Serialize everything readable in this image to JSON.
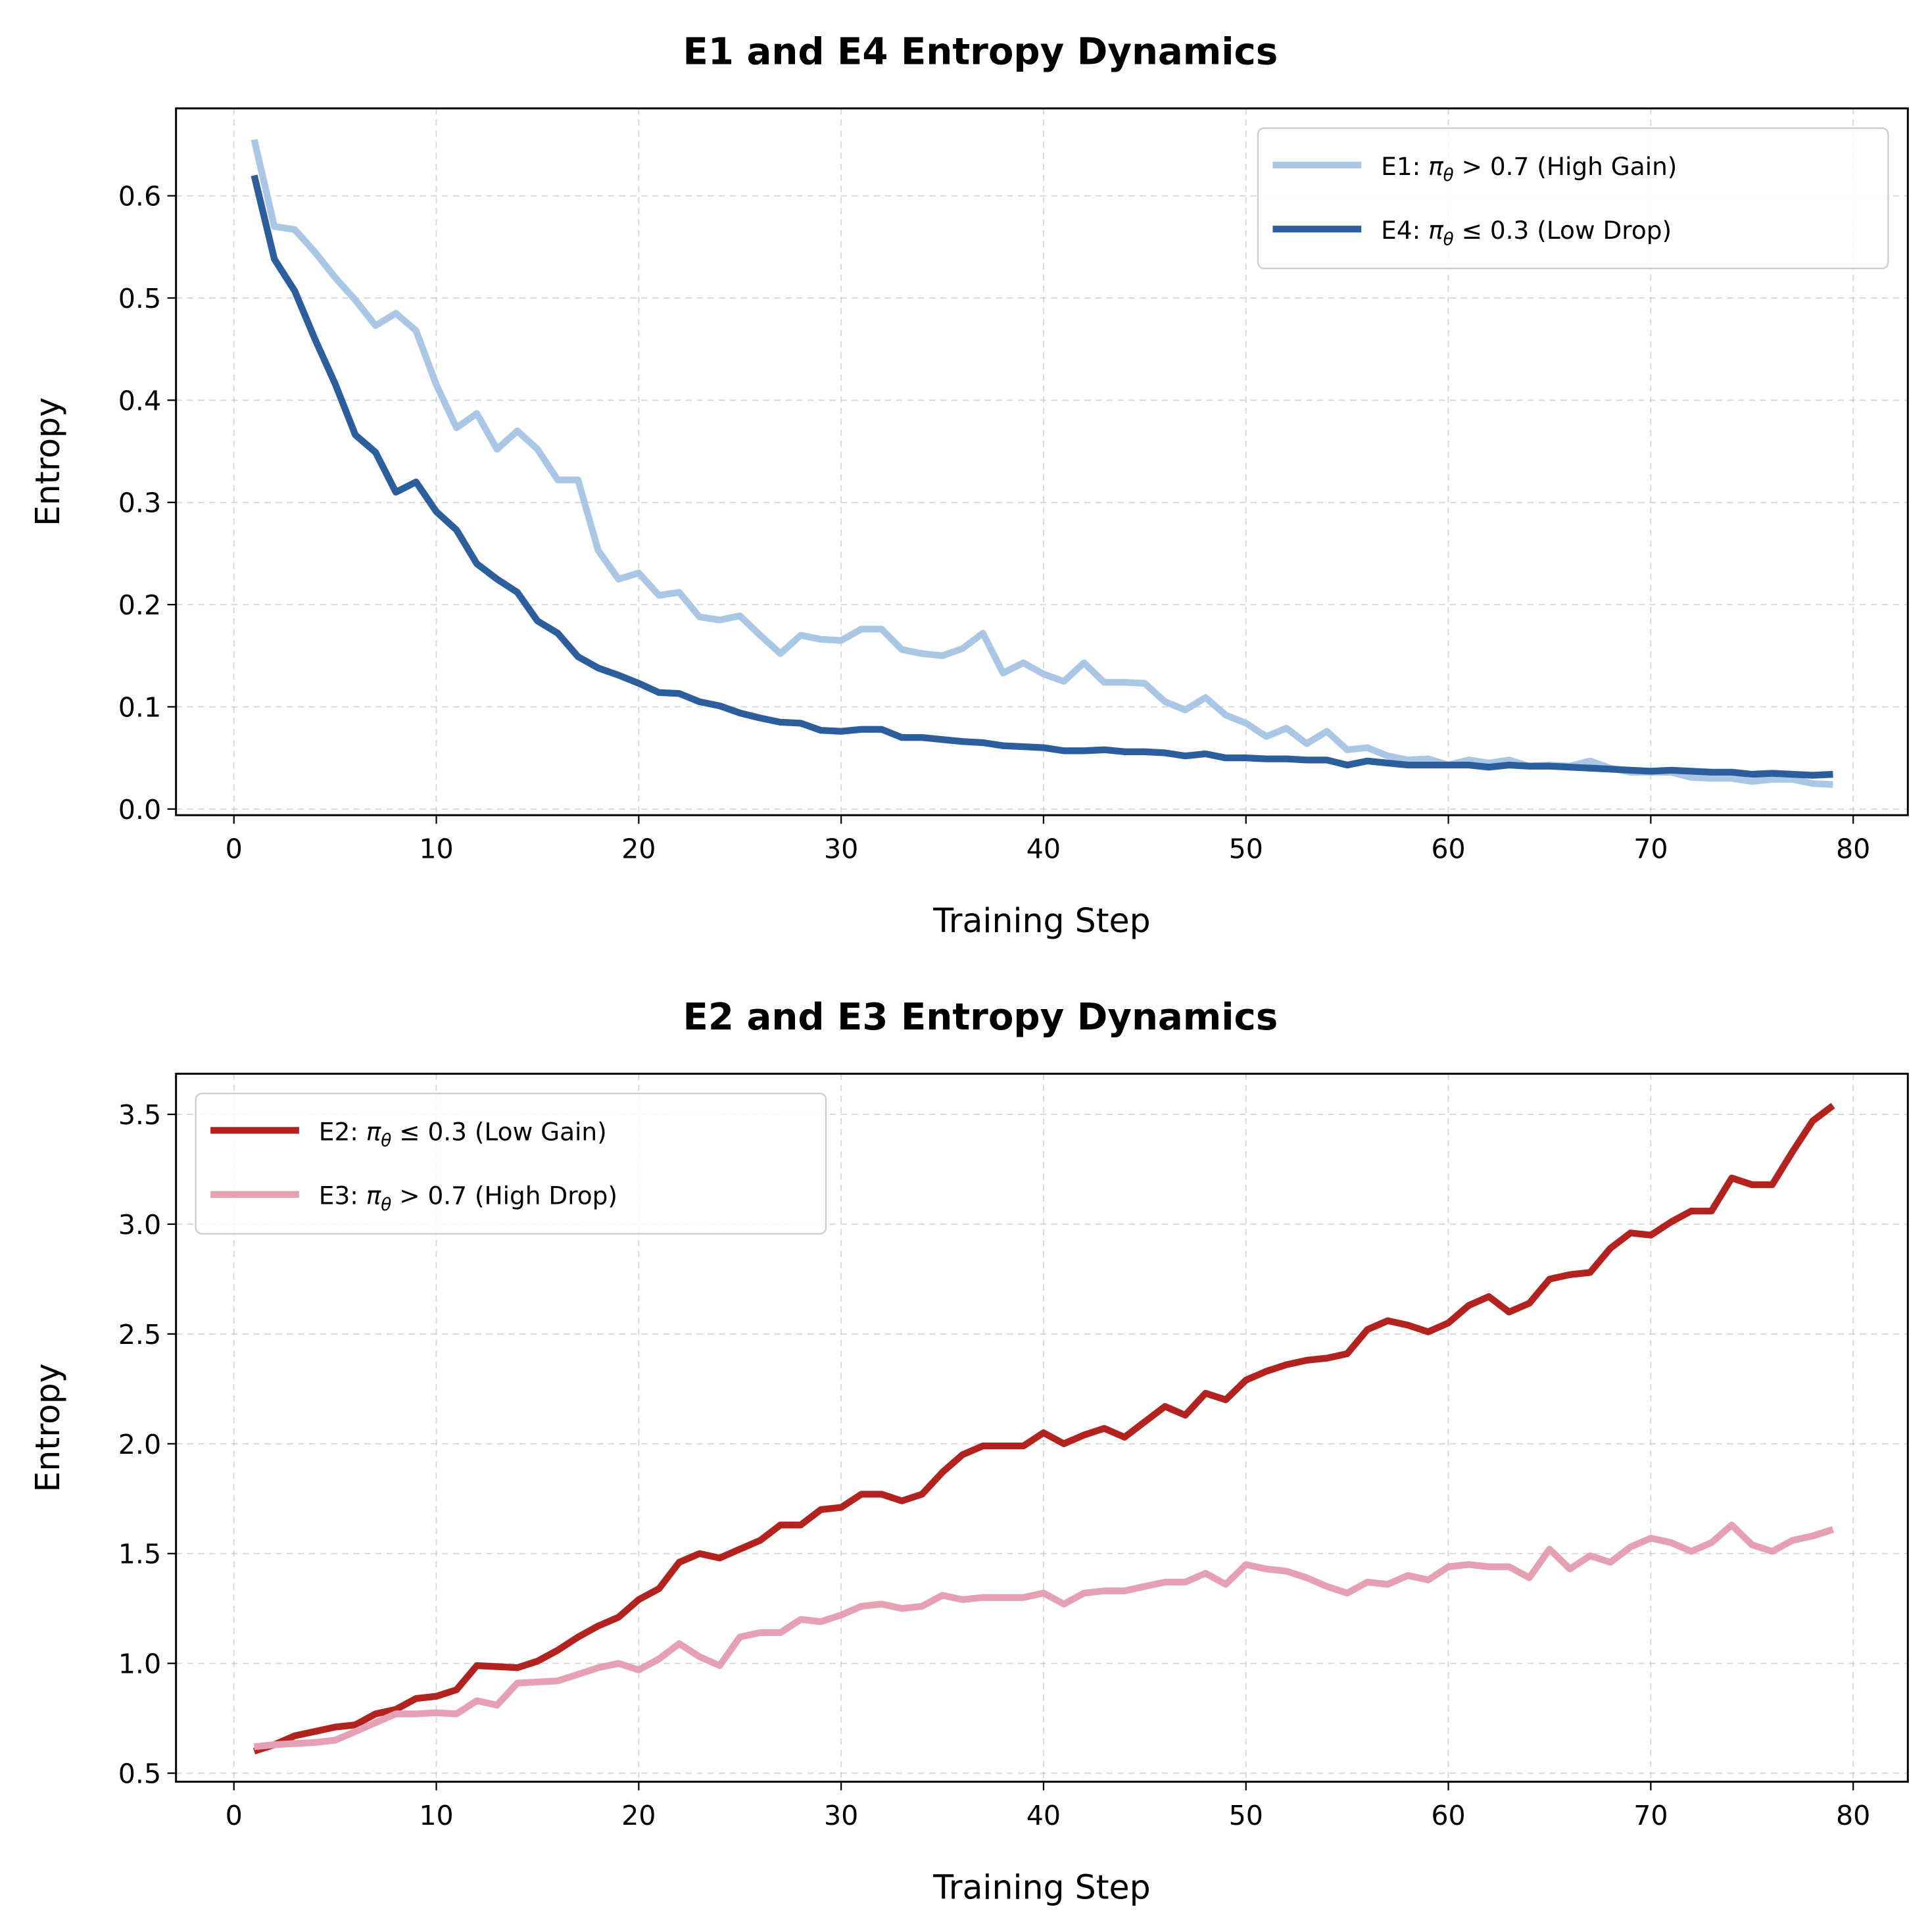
{
  "chart_data": [
    {
      "type": "line",
      "title": "E1 and E4 Entropy Dynamics",
      "xlabel": "Training Step",
      "ylabel": "Entropy",
      "xlim": [
        -2.86,
        82.7
      ],
      "ylim": [
        -0.006,
        0.6855
      ],
      "xticks": [
        "0",
        "10",
        "20",
        "30",
        "40",
        "50",
        "60",
        "70",
        "80"
      ],
      "yticks": [
        "0.0",
        "0.1",
        "0.2",
        "0.3",
        "0.4",
        "0.5",
        "0.6"
      ],
      "grid": true,
      "legend_position": "top-right",
      "series": [
        {
          "name_parts": {
            "prefix": "E1: ",
            "sym": "π",
            "sub": "θ",
            "rest": " > 0.7 (High Gain)"
          },
          "color": "#aac8e6",
          "values": [
            0.655,
            0.57,
            0.567,
            0.545,
            0.52,
            0.498,
            0.473,
            0.485,
            0.468,
            0.415,
            0.373,
            0.387,
            0.352,
            0.37,
            0.352,
            0.322,
            0.322,
            0.253,
            0.225,
            0.231,
            0.209,
            0.212,
            0.188,
            0.185,
            0.189,
            0.17,
            0.152,
            0.17,
            0.166,
            0.165,
            0.176,
            0.176,
            0.156,
            0.152,
            0.15,
            0.157,
            0.172,
            0.133,
            0.143,
            0.132,
            0.125,
            0.143,
            0.124,
            0.124,
            0.123,
            0.105,
            0.097,
            0.109,
            0.092,
            0.084,
            0.071,
            0.079,
            0.064,
            0.076,
            0.058,
            0.06,
            0.052,
            0.048,
            0.049,
            0.043,
            0.048,
            0.045,
            0.048,
            0.042,
            0.043,
            0.042,
            0.047,
            0.04,
            0.036,
            0.036,
            0.036,
            0.031,
            0.03,
            0.03,
            0.027,
            0.029,
            0.029,
            0.025,
            0.024
          ]
        },
        {
          "name_parts": {
            "prefix": "E4: ",
            "sym": "π",
            "sub": "θ",
            "rest": " ≤ 0.3 (Low Drop)"
          },
          "color": "#2c5e9e",
          "values": [
            0.62,
            0.538,
            0.507,
            0.46,
            0.416,
            0.366,
            0.349,
            0.31,
            0.32,
            0.291,
            0.273,
            0.24,
            0.225,
            0.212,
            0.184,
            0.172,
            0.149,
            0.138,
            0.131,
            0.123,
            0.114,
            0.113,
            0.105,
            0.101,
            0.094,
            0.089,
            0.085,
            0.084,
            0.077,
            0.076,
            0.078,
            0.078,
            0.07,
            0.07,
            0.068,
            0.066,
            0.065,
            0.062,
            0.061,
            0.06,
            0.057,
            0.057,
            0.058,
            0.056,
            0.056,
            0.055,
            0.052,
            0.054,
            0.05,
            0.05,
            0.049,
            0.049,
            0.048,
            0.048,
            0.043,
            0.047,
            0.045,
            0.043,
            0.043,
            0.043,
            0.043,
            0.041,
            0.043,
            0.042,
            0.042,
            0.041,
            0.04,
            0.039,
            0.038,
            0.037,
            0.038,
            0.037,
            0.036,
            0.036,
            0.034,
            0.035,
            0.034,
            0.033,
            0.034
          ]
        }
      ]
    },
    {
      "type": "line",
      "title": "E2 and E3 Entropy Dynamics",
      "xlabel": "Training Step",
      "ylabel": "Entropy",
      "xlim": [
        -2.86,
        82.7
      ],
      "ylim": [
        0.461,
        3.685
      ],
      "xticks": [
        "0",
        "10",
        "20",
        "30",
        "40",
        "50",
        "60",
        "70",
        "80"
      ],
      "yticks": [
        "0.5",
        "1.0",
        "1.5",
        "2.0",
        "2.5",
        "3.0",
        "3.5"
      ],
      "grid": true,
      "legend_position": "top-left",
      "series": [
        {
          "name_parts": {
            "prefix": "E2: ",
            "sym": "π",
            "sub": "θ",
            "rest": " ≤ 0.3 (Low Gain)"
          },
          "color": "#b2221e",
          "values": [
            0.6,
            0.63,
            0.67,
            0.69,
            0.71,
            0.72,
            0.77,
            0.79,
            0.84,
            0.85,
            0.88,
            0.99,
            0.985,
            0.98,
            1.01,
            1.06,
            1.12,
            1.17,
            1.21,
            1.29,
            1.34,
            1.46,
            1.5,
            1.48,
            1.52,
            1.56,
            1.63,
            1.63,
            1.7,
            1.71,
            1.77,
            1.77,
            1.74,
            1.77,
            1.87,
            1.95,
            1.99,
            1.99,
            1.99,
            2.05,
            2.0,
            2.04,
            2.07,
            2.03,
            2.1,
            2.17,
            2.13,
            2.23,
            2.2,
            2.29,
            2.33,
            2.36,
            2.38,
            2.39,
            2.41,
            2.52,
            2.56,
            2.54,
            2.51,
            2.55,
            2.63,
            2.67,
            2.6,
            2.64,
            2.75,
            2.77,
            2.78,
            2.89,
            2.96,
            2.95,
            3.01,
            3.06,
            3.06,
            3.21,
            3.18,
            3.18,
            3.33,
            3.47,
            3.54
          ]
        },
        {
          "name_parts": {
            "prefix": "E3: ",
            "sym": "π",
            "sub": "θ",
            "rest": " > 0.7 (High Drop)"
          },
          "color": "#e5a1b3",
          "values": [
            0.62,
            0.63,
            0.635,
            0.64,
            0.65,
            0.69,
            0.73,
            0.77,
            0.77,
            0.775,
            0.77,
            0.83,
            0.81,
            0.91,
            0.915,
            0.92,
            0.95,
            0.98,
            1.0,
            0.97,
            1.02,
            1.09,
            1.03,
            0.99,
            1.12,
            1.14,
            1.14,
            1.2,
            1.19,
            1.22,
            1.26,
            1.27,
            1.25,
            1.26,
            1.31,
            1.29,
            1.3,
            1.3,
            1.3,
            1.32,
            1.27,
            1.32,
            1.33,
            1.33,
            1.35,
            1.37,
            1.37,
            1.41,
            1.36,
            1.45,
            1.43,
            1.42,
            1.39,
            1.35,
            1.32,
            1.37,
            1.36,
            1.4,
            1.38,
            1.44,
            1.45,
            1.44,
            1.44,
            1.39,
            1.52,
            1.43,
            1.49,
            1.46,
            1.53,
            1.57,
            1.55,
            1.51,
            1.55,
            1.63,
            1.54,
            1.51,
            1.56,
            1.58,
            1.61
          ]
        }
      ]
    }
  ]
}
